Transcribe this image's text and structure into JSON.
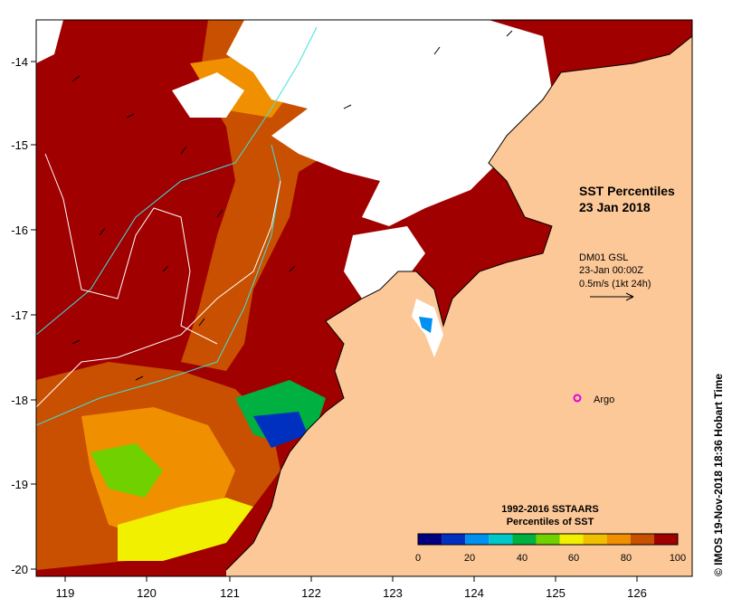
{
  "title": {
    "line1": "SST Percentiles",
    "line2": "23 Jan 2018"
  },
  "current_legend": {
    "model": "DM01 GSL",
    "time": "23-Jan 00:00Z",
    "scale": "0.5m/s (1kt 24h)"
  },
  "argo": {
    "label": "Argo",
    "marker_color": "#e000e0",
    "lon": 125.25,
    "lat": -18.0
  },
  "colorbar": {
    "title_line1": "1992-2016 SSTAARS",
    "title_line2": "Percentiles of SST",
    "ticks": [
      "0",
      "20",
      "40",
      "60",
      "80",
      "100"
    ],
    "colors": [
      "#000080",
      "#0030c0",
      "#0090f0",
      "#00c8c8",
      "#00b040",
      "#70d000",
      "#f0f000",
      "#f0c000",
      "#f09000",
      "#c85000",
      "#a00000"
    ]
  },
  "axes": {
    "x_ticks": [
      "119",
      "120",
      "121",
      "122",
      "123",
      "124",
      "125",
      "126"
    ],
    "y_ticks": [
      "-14",
      "-15",
      "-16",
      "-17",
      "-18",
      "-19",
      "-20"
    ],
    "lon_range": [
      118.6,
      126.65
    ],
    "lat_range": [
      -20.1,
      -13.5
    ]
  },
  "credit": "© IMOS 19-Nov-2018 18:36 Hobart Time",
  "colors": {
    "land": "#fdc898",
    "high": "#a00000",
    "mid_high": "#c85000",
    "mid": "#f09000",
    "no_data": "#ffffff"
  }
}
